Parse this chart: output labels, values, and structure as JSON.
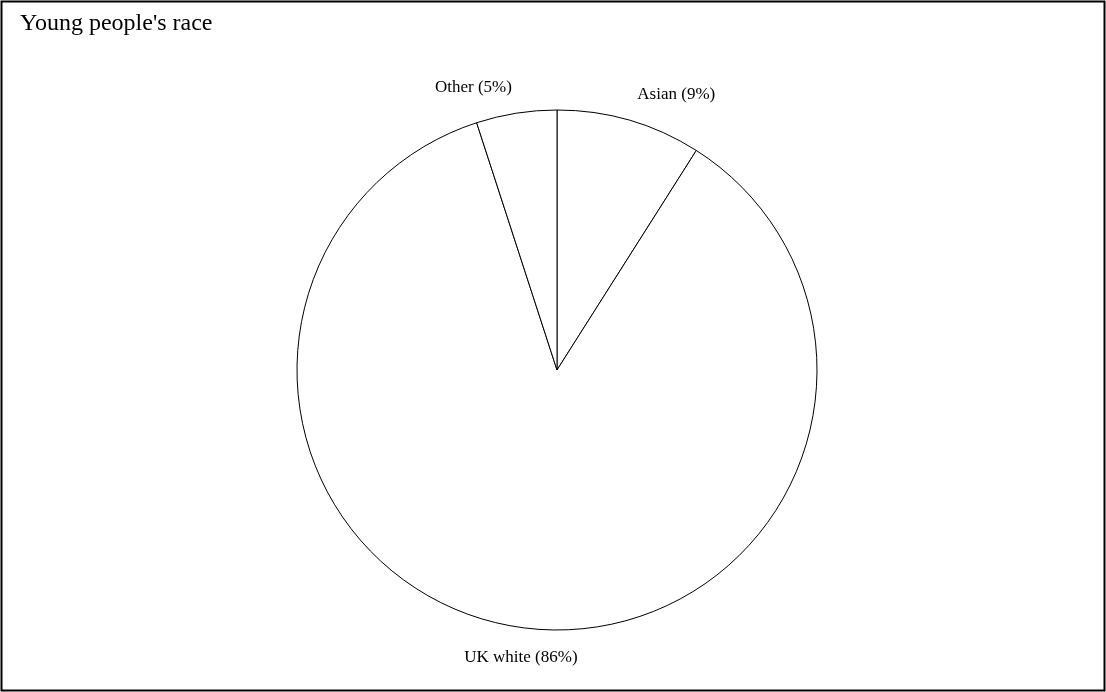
{
  "chart_data": {
    "type": "pie",
    "title": "Young people's race",
    "categories": [
      "Asian (9%)",
      "UK white (86%)",
      "Other (5%)"
    ],
    "values": [
      9,
      86,
      5
    ],
    "colors": [
      "#ffffff",
      "#ffffff",
      "#ffffff"
    ]
  }
}
